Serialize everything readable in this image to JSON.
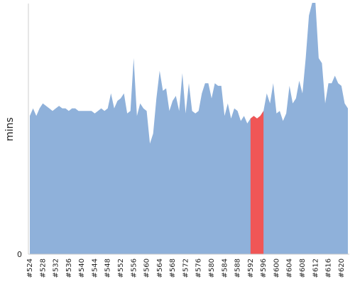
{
  "chart_data": {
    "type": "area",
    "ylabel": "mins",
    "ylim": [
      0,
      100
    ],
    "yticks": [
      "0"
    ],
    "x": [
      524,
      525,
      526,
      527,
      528,
      529,
      530,
      531,
      532,
      533,
      534,
      535,
      536,
      537,
      538,
      539,
      540,
      541,
      542,
      543,
      544,
      545,
      546,
      547,
      548,
      549,
      550,
      551,
      552,
      553,
      554,
      555,
      556,
      557,
      558,
      559,
      560,
      561,
      562,
      563,
      564,
      565,
      566,
      567,
      568,
      569,
      570,
      571,
      572,
      573,
      574,
      575,
      576,
      577,
      578,
      579,
      580,
      581,
      582,
      583,
      584,
      585,
      586,
      587,
      588,
      589,
      590,
      591,
      592,
      593,
      594,
      595,
      596,
      597,
      598,
      599,
      600,
      601,
      602,
      603,
      604,
      605,
      606,
      607,
      608,
      609,
      610,
      611,
      612,
      613,
      614,
      615,
      616,
      617,
      618,
      619,
      620,
      621,
      622
    ],
    "series": [
      {
        "color": "#8fb1da",
        "values": [
          55,
          58,
          55,
          58,
          60,
          59,
          58,
          57,
          58,
          59,
          58,
          58,
          57,
          58,
          58,
          57,
          57,
          57,
          57,
          57,
          56,
          57,
          58,
          57,
          58,
          64,
          58,
          61,
          62,
          64,
          56,
          57,
          78,
          55,
          60,
          58,
          57,
          44,
          48,
          62,
          73,
          65,
          66,
          57,
          61,
          63,
          57,
          72,
          56,
          68,
          57,
          56,
          57,
          64,
          68,
          68,
          62,
          68,
          67,
          67,
          55,
          60,
          54,
          58,
          57,
          53,
          55,
          52,
          54,
          55,
          54,
          55,
          57,
          64,
          60,
          68,
          56,
          57,
          53,
          56,
          67,
          60,
          62,
          69,
          64,
          78,
          95,
          100,
          100,
          78,
          76,
          60,
          68,
          68,
          71,
          68,
          67,
          60,
          58
        ]
      }
    ],
    "highlight": {
      "color": "#f05656",
      "x_range": [
        592,
        596
      ]
    },
    "x_tick_labels": [
      "#524",
      "#528",
      "#532",
      "#536",
      "#540",
      "#544",
      "#548",
      "#552",
      "#556",
      "#560",
      "#564",
      "#568",
      "#572",
      "#576",
      "#580",
      "#584",
      "#588",
      "#592",
      "#596",
      "#600",
      "#604",
      "#608",
      "#612",
      "#616",
      "#620"
    ],
    "x_tick_values": [
      524,
      528,
      532,
      536,
      540,
      544,
      548,
      552,
      556,
      560,
      564,
      568,
      572,
      576,
      580,
      584,
      588,
      592,
      596,
      600,
      604,
      608,
      612,
      616,
      620
    ],
    "grid": false
  }
}
